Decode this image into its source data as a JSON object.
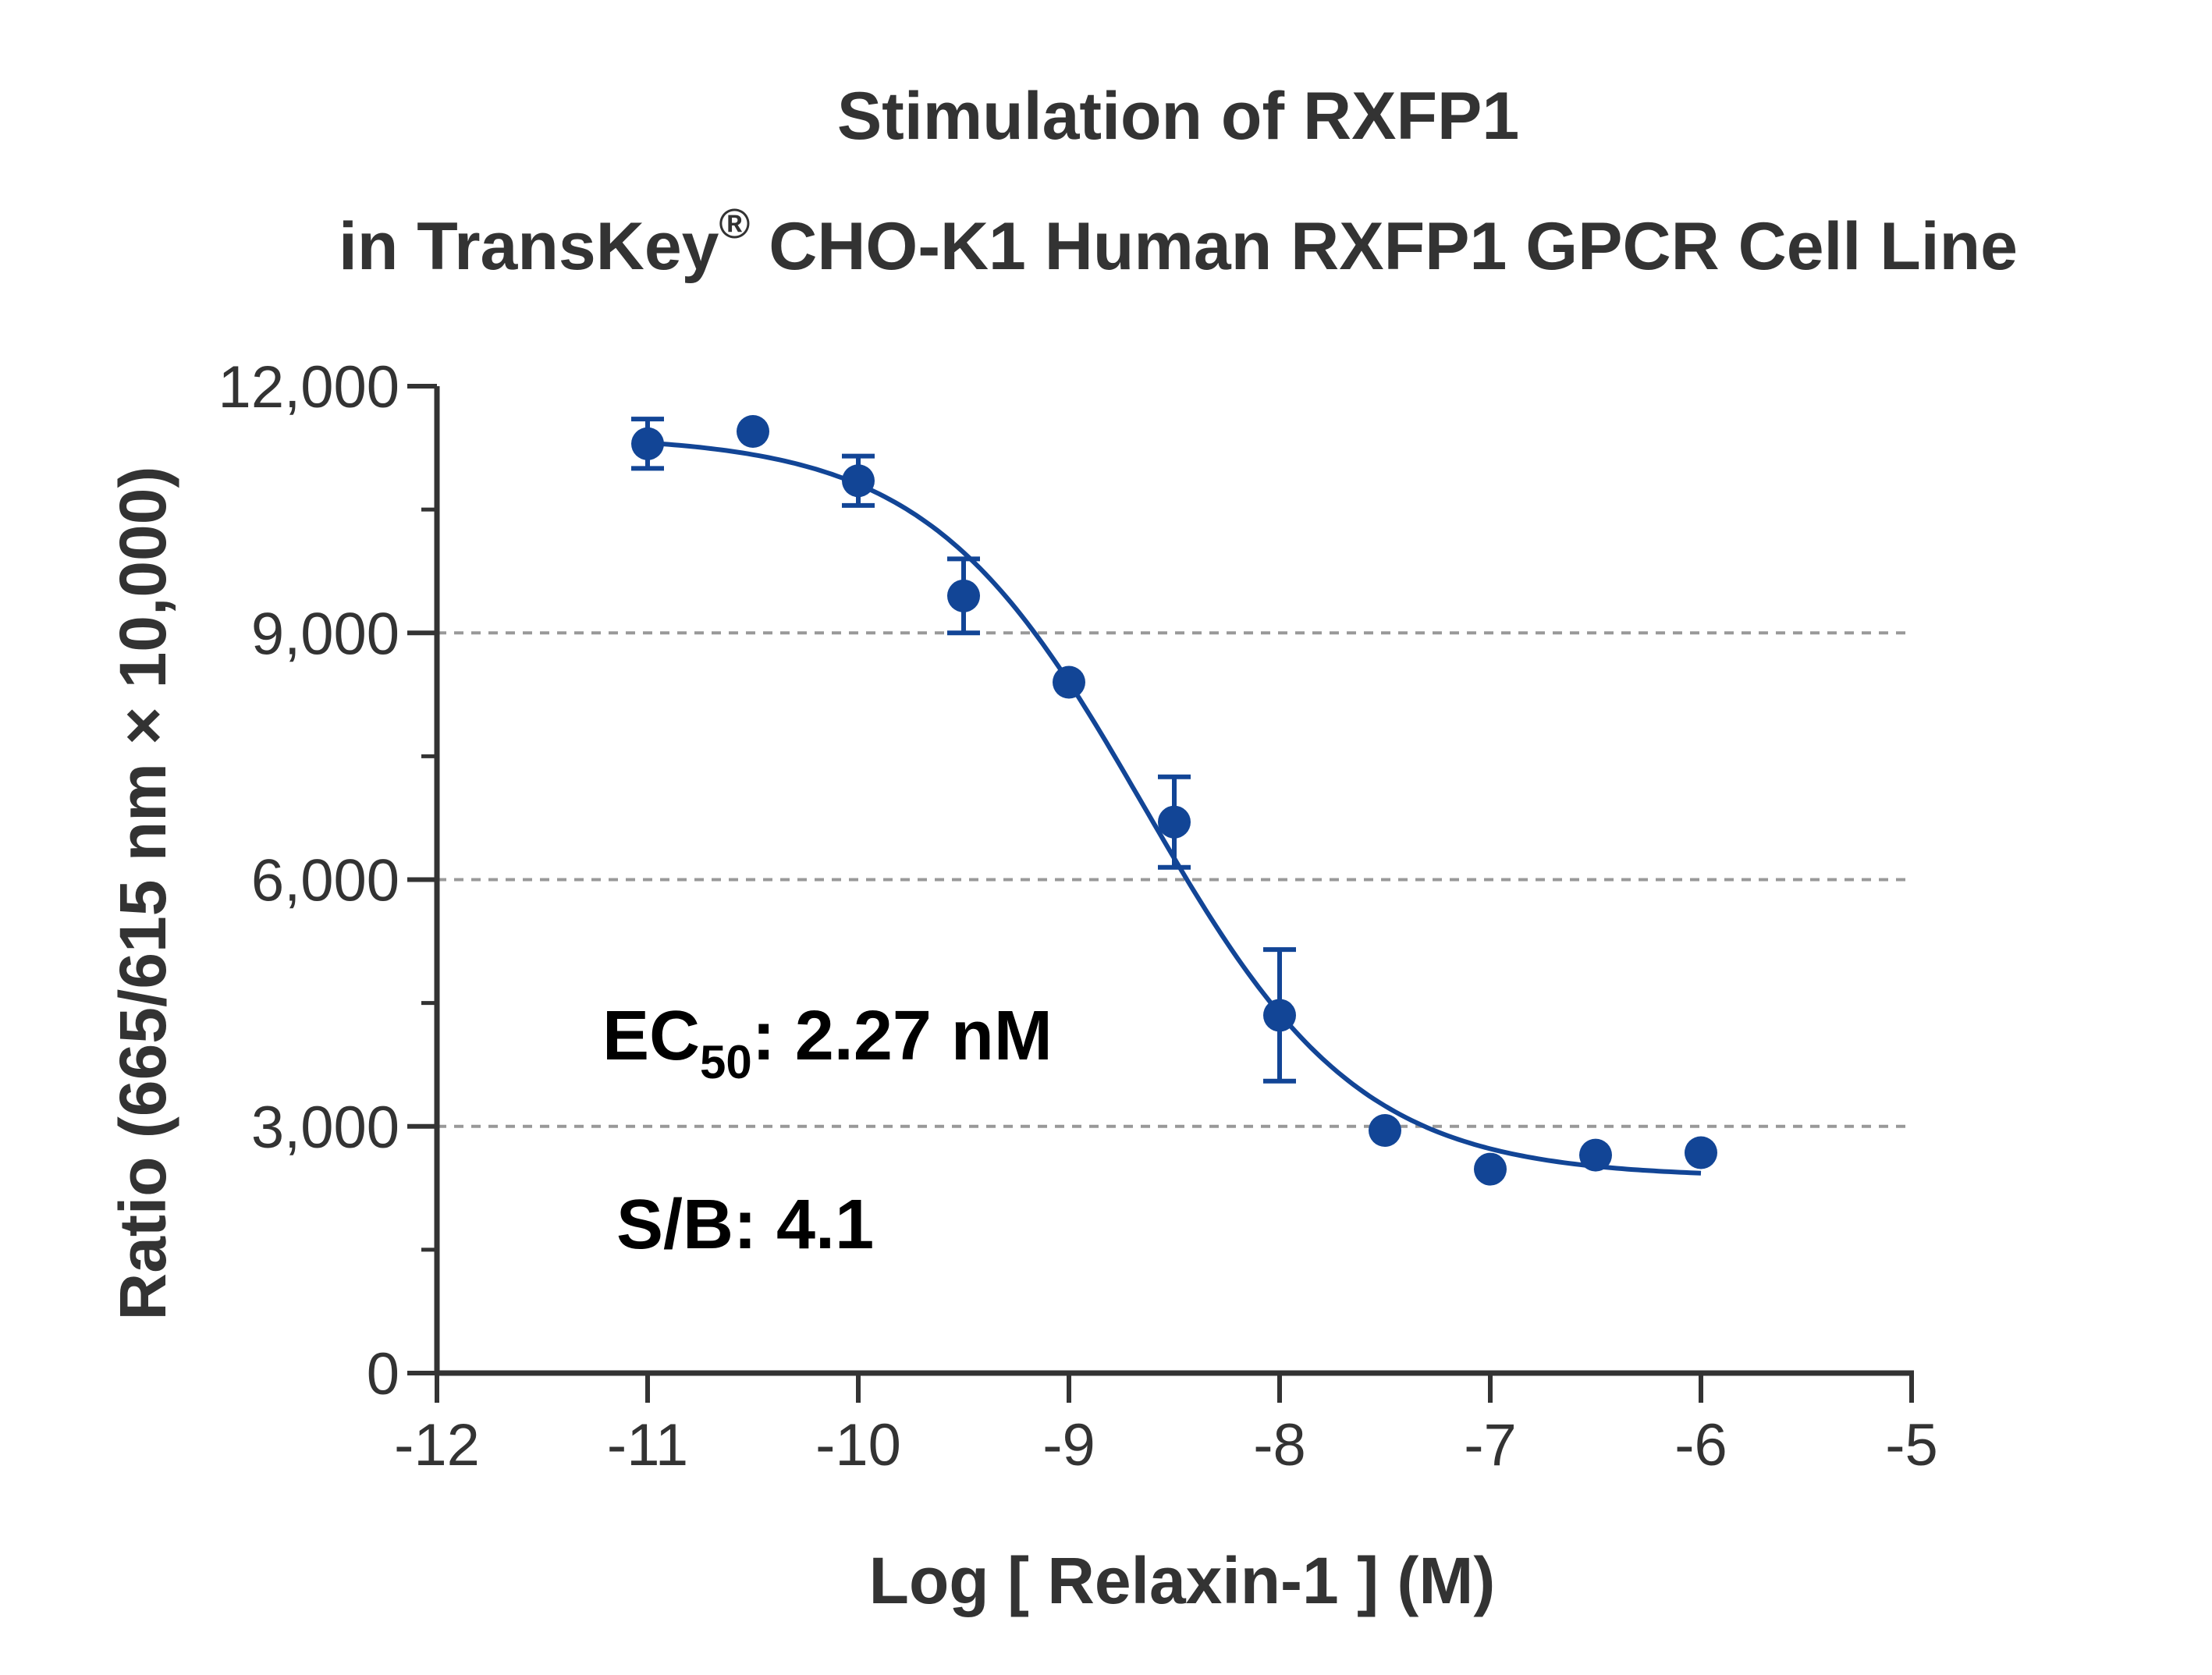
{
  "chart_data": {
    "type": "scatter",
    "title_line1": "Stimulation of  RXFP1",
    "title_line2_prefix": "in TransKey",
    "title_line2_sup": "®",
    "title_line2_suffix": " CHO-K1 Human RXFP1 GPCR Cell Line",
    "xlabel": "Log [ Relaxin-1 ]  (M)",
    "ylabel": "Ratio (665/615 nm × 10,000)",
    "xlim": [
      -12,
      -5
    ],
    "ylim": [
      0,
      12000
    ],
    "x_ticks": [
      -12,
      -11,
      -10,
      -9,
      -8,
      -7,
      -6,
      -5
    ],
    "x_tick_labels": [
      "-12",
      "-11",
      "-10",
      "-9",
      "-8",
      "-7",
      "-6",
      "-5"
    ],
    "y_ticks": [
      0,
      3000,
      6000,
      9000,
      12000
    ],
    "y_tick_labels": [
      "0",
      "3,000",
      "6,000",
      "9,000",
      "12,000"
    ],
    "y_minor_ticks": [
      1500,
      4500,
      7500,
      10500
    ],
    "grid": {
      "horizontal_dashed_at": [
        3000,
        6000,
        9000
      ]
    },
    "series": [
      {
        "x": [
          -11,
          -10.5,
          -10,
          -9.5,
          -9,
          -8.5,
          -8,
          -7.5,
          -7,
          -6.5,
          -6
        ],
        "y": [
          11300,
          11450,
          10850,
          9450,
          8400,
          6700,
          4350,
          2950,
          2480,
          2650,
          2680
        ],
        "error": [
          300,
          0,
          300,
          450,
          0,
          550,
          800,
          0,
          0,
          0,
          0
        ]
      }
    ],
    "fit_curve": {
      "model": "4PL",
      "top": 11400,
      "bottom": 2380,
      "log_ec50": -8.644,
      "hill": 0.85,
      "x_range": [
        -11,
        -6
      ]
    },
    "annotations": {
      "ec50_prefix": "EC",
      "ec50_sub": "50",
      "ec50_suffix": ": 2.27 nM",
      "sb": "S/B: 4.1"
    },
    "colors": {
      "data": "#124596",
      "axis": "#333333",
      "grid": "#999999"
    }
  }
}
